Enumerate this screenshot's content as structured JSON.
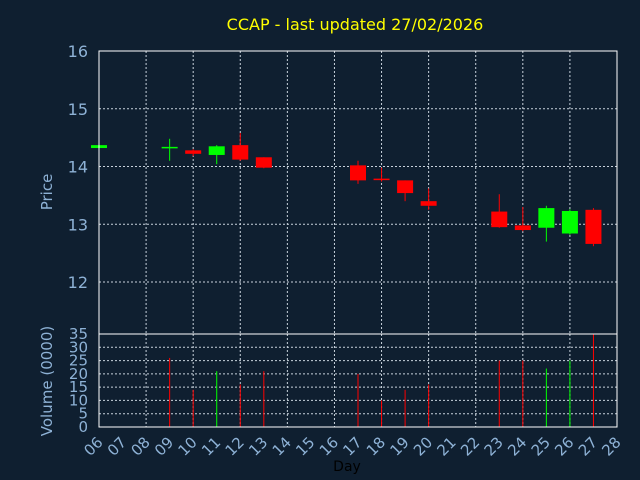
{
  "colors": {
    "background": "#0f1f30",
    "title": "#ffff00",
    "axis_text": "#8eb2d6",
    "up": "#00ff00",
    "down": "#ff0000",
    "grid": "#c8d2dc"
  },
  "chart_data": [
    {
      "type": "candlestick",
      "title": "CCAP - last updated 27/02/2026",
      "xlabel": "",
      "ylabel": "Price",
      "ylim": [
        11.1,
        16
      ],
      "yticks": [
        12,
        13,
        14,
        15,
        16
      ],
      "grid": true,
      "x": [
        "06",
        "07",
        "08",
        "09",
        "10",
        "11",
        "12",
        "13",
        "14",
        "15",
        "16",
        "17",
        "18",
        "19",
        "20",
        "21",
        "22",
        "23",
        "24",
        "25",
        "26",
        "27",
        "28"
      ],
      "candles": [
        {
          "day": "06",
          "open": 14.32,
          "high": 14.37,
          "low": 14.32,
          "close": 14.37
        },
        {
          "day": "09",
          "open": 14.34,
          "high": 14.48,
          "low": 14.1,
          "close": 14.34
        },
        {
          "day": "10",
          "open": 14.28,
          "high": 14.3,
          "low": 14.18,
          "close": 14.22
        },
        {
          "day": "11",
          "open": 14.2,
          "high": 14.37,
          "low": 14.04,
          "close": 14.35
        },
        {
          "day": "12",
          "open": 14.37,
          "high": 14.58,
          "low": 14.1,
          "close": 14.12
        },
        {
          "day": "13",
          "open": 14.16,
          "high": 14.16,
          "low": 13.97,
          "close": 13.98
        },
        {
          "day": "17",
          "open": 14.02,
          "high": 14.1,
          "low": 13.7,
          "close": 13.76
        },
        {
          "day": "18",
          "open": 13.79,
          "high": 13.98,
          "low": 13.74,
          "close": 13.78
        },
        {
          "day": "19",
          "open": 13.76,
          "high": 13.76,
          "low": 13.4,
          "close": 13.54
        },
        {
          "day": "20",
          "open": 13.4,
          "high": 13.62,
          "low": 13.25,
          "close": 13.32
        },
        {
          "day": "23",
          "open": 13.22,
          "high": 13.52,
          "low": 12.94,
          "close": 12.95
        },
        {
          "day": "24",
          "open": 12.98,
          "high": 13.3,
          "low": 12.88,
          "close": 12.9
        },
        {
          "day": "25",
          "open": 12.94,
          "high": 13.32,
          "low": 12.7,
          "close": 13.28
        },
        {
          "day": "26",
          "open": 12.84,
          "high": 13.26,
          "low": 12.82,
          "close": 13.23
        },
        {
          "day": "27",
          "open": 13.25,
          "high": 13.28,
          "low": 12.62,
          "close": 12.66
        }
      ]
    },
    {
      "type": "bar",
      "title": "",
      "xlabel": "Day",
      "ylabel": "Volume (0000)",
      "ylim": [
        0,
        35
      ],
      "yticks": [
        0,
        5,
        10,
        15,
        20,
        25,
        30,
        35
      ],
      "grid": true,
      "x": [
        "06",
        "07",
        "08",
        "09",
        "10",
        "11",
        "12",
        "13",
        "14",
        "15",
        "16",
        "17",
        "18",
        "19",
        "20",
        "21",
        "22",
        "23",
        "24",
        "25",
        "26",
        "27",
        "28"
      ],
      "volumes": [
        {
          "day": "09",
          "value": 26,
          "direction": "down"
        },
        {
          "day": "10",
          "value": 14,
          "direction": "down"
        },
        {
          "day": "11",
          "value": 21,
          "direction": "up"
        },
        {
          "day": "12",
          "value": 16,
          "direction": "down"
        },
        {
          "day": "13",
          "value": 21,
          "direction": "down"
        },
        {
          "day": "17",
          "value": 20,
          "direction": "down"
        },
        {
          "day": "18",
          "value": 10,
          "direction": "down"
        },
        {
          "day": "19",
          "value": 14,
          "direction": "down"
        },
        {
          "day": "20",
          "value": 16,
          "direction": "down"
        },
        {
          "day": "23",
          "value": 25,
          "direction": "down"
        },
        {
          "day": "24",
          "value": 25,
          "direction": "down"
        },
        {
          "day": "25",
          "value": 22,
          "direction": "up"
        },
        {
          "day": "26",
          "value": 25,
          "direction": "up"
        },
        {
          "day": "27",
          "value": 35,
          "direction": "down"
        }
      ]
    }
  ]
}
